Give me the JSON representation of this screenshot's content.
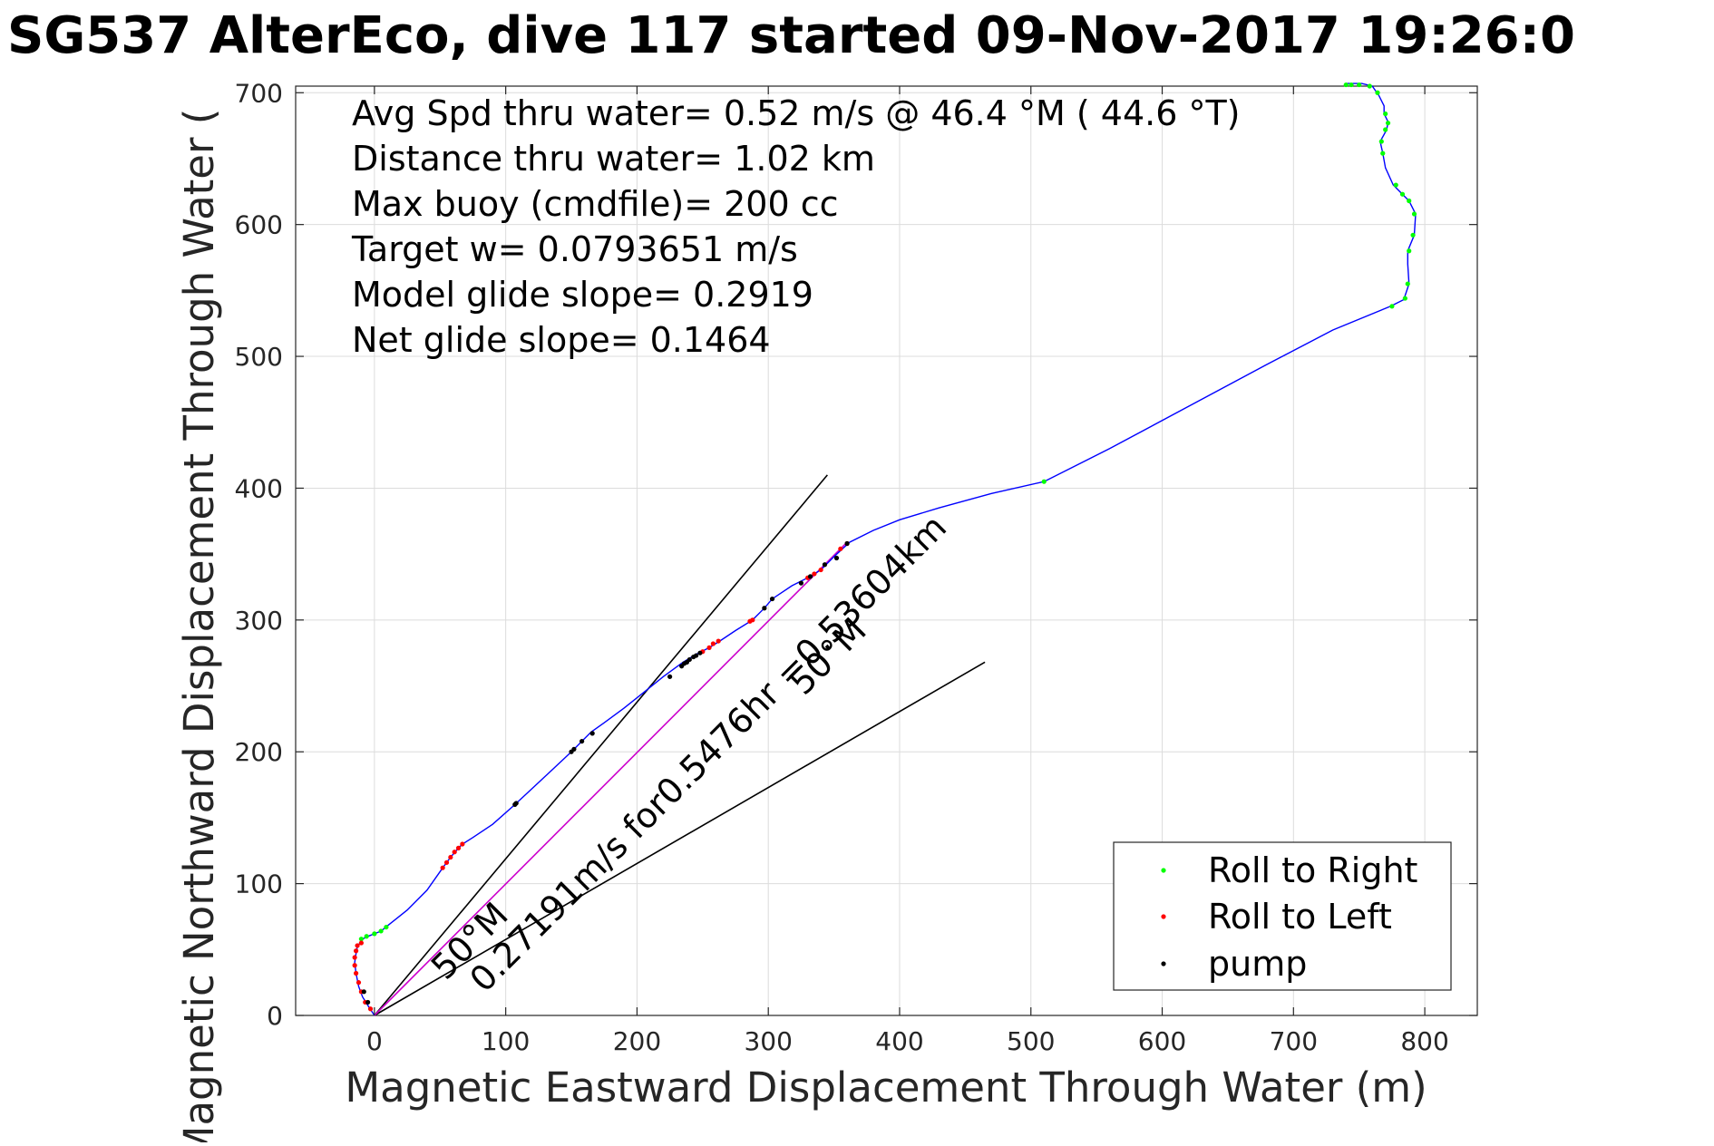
{
  "chart_data": {
    "type": "line",
    "title": "SG537 AlterEco, dive 117 started 09-Nov-2017 19:26:0",
    "xlabel": "Magnetic Eastward Displacement Through Water (m)",
    "ylabel": "Magnetic Northward Displacement Through Water (",
    "xlim": [
      -60,
      840
    ],
    "ylim": [
      0,
      705
    ],
    "grid": true,
    "x_ticks": [
      0,
      100,
      200,
      300,
      400,
      500,
      600,
      700,
      800
    ],
    "y_ticks": [
      0,
      100,
      200,
      300,
      400,
      500,
      600,
      700
    ],
    "x_tick_labels": [
      "0",
      "100",
      "200",
      "300",
      "400",
      "500",
      "600",
      "700",
      "800"
    ],
    "y_tick_labels": [
      "0",
      "100",
      "200",
      "300",
      "400",
      "500",
      "600",
      "700"
    ],
    "annotations": [
      "Avg Spd thru water=  0.52 m/s @  46.4 °M ( 44.6 °T)",
      "Distance thru water=  1.02 km",
      "Max buoy (cmdfile)= 200 cc",
      "Target w= 0.0793651 m/s",
      "Model glide slope= 0.2919",
      "Net glide slope= 0.1464"
    ],
    "vector_label": "0.27191m/s for0.5476hr =0.53604km",
    "heading_label_1": "50°M",
    "heading_label_2": "50°M",
    "colors": {
      "track": "#0000ff",
      "net_vector": "#cc00cc",
      "roll_right": "#00ff00",
      "roll_left": "#ff0000",
      "pump": "#000000",
      "heading_lines": "#000000"
    },
    "legend_position": "bottom-right",
    "legend": [
      {
        "name": "Roll to Right",
        "marker_color": "#00ff00"
      },
      {
        "name": "Roll to Left",
        "marker_color": "#ff0000"
      },
      {
        "name": "pump",
        "marker_color": "#000000"
      }
    ],
    "track": [
      [
        0,
        0
      ],
      [
        -4,
        6
      ],
      [
        -9,
        14
      ],
      [
        -12,
        22
      ],
      [
        -14,
        32
      ],
      [
        -15,
        40
      ],
      [
        -14,
        47
      ],
      [
        -13,
        52
      ],
      [
        -11,
        55
      ],
      [
        -9,
        58
      ],
      [
        -5,
        60
      ],
      [
        0,
        62
      ],
      [
        5,
        64
      ],
      [
        10,
        68
      ],
      [
        25,
        80
      ],
      [
        40,
        95
      ],
      [
        52,
        112
      ],
      [
        58,
        120
      ],
      [
        64,
        127
      ],
      [
        67,
        130
      ],
      [
        75,
        135
      ],
      [
        90,
        145
      ],
      [
        107,
        160
      ],
      [
        120,
        172
      ],
      [
        135,
        186
      ],
      [
        150,
        200
      ],
      [
        158,
        208
      ],
      [
        165,
        215
      ],
      [
        175,
        222
      ],
      [
        190,
        233
      ],
      [
        205,
        245
      ],
      [
        220,
        257
      ],
      [
        235,
        268
      ],
      [
        245,
        274
      ],
      [
        255,
        279
      ],
      [
        263,
        284
      ],
      [
        275,
        292
      ],
      [
        288,
        300
      ],
      [
        297,
        309
      ],
      [
        303,
        316
      ],
      [
        318,
        326
      ],
      [
        330,
        332
      ],
      [
        340,
        338
      ],
      [
        350,
        348
      ],
      [
        362,
        359
      ],
      [
        380,
        368
      ],
      [
        400,
        376
      ],
      [
        430,
        385
      ],
      [
        470,
        396
      ],
      [
        510,
        405
      ],
      [
        560,
        430
      ],
      [
        620,
        462
      ],
      [
        680,
        494
      ],
      [
        730,
        520
      ],
      [
        774,
        538
      ],
      [
        784,
        543
      ],
      [
        788,
        555
      ],
      [
        787,
        570
      ],
      [
        787,
        580
      ],
      [
        792,
        592
      ],
      [
        793,
        608
      ],
      [
        788,
        618
      ],
      [
        784,
        622
      ],
      [
        776,
        630
      ],
      [
        770,
        643
      ],
      [
        768,
        654
      ],
      [
        766,
        663
      ],
      [
        771,
        672
      ],
      [
        772,
        678
      ],
      [
        769,
        684
      ],
      [
        769,
        690
      ],
      [
        765,
        698
      ],
      [
        760,
        705
      ],
      [
        752,
        707
      ],
      [
        745,
        707
      ],
      [
        740,
        707
      ]
    ],
    "net_vector_end": [
      360,
      359
    ],
    "heading_lines": [
      [
        [
          0,
          0
        ],
        [
          345,
          410
        ]
      ],
      [
        [
          0,
          0
        ],
        [
          465,
          268
        ]
      ]
    ],
    "roll_right_points": [
      [
        -10,
        58
      ],
      [
        -6,
        60
      ],
      [
        0,
        62
      ],
      [
        5,
        64
      ],
      [
        9,
        67
      ],
      [
        510,
        405
      ],
      [
        775,
        538
      ],
      [
        785,
        544
      ],
      [
        787,
        555
      ],
      [
        788,
        580
      ],
      [
        791,
        592
      ],
      [
        792,
        608
      ],
      [
        788,
        618
      ],
      [
        783,
        623
      ],
      [
        778,
        630
      ],
      [
        768,
        654
      ],
      [
        767,
        663
      ],
      [
        770,
        672
      ],
      [
        772,
        677
      ],
      [
        770,
        684
      ],
      [
        764,
        700
      ],
      [
        758,
        705
      ],
      [
        750,
        706
      ],
      [
        744,
        706
      ],
      [
        740,
        706
      ]
    ],
    "roll_left_points": [
      [
        -3,
        5
      ],
      [
        -7,
        10
      ],
      [
        -10,
        18
      ],
      [
        -12,
        25
      ],
      [
        -14,
        32
      ],
      [
        -15,
        38
      ],
      [
        -15,
        44
      ],
      [
        -14,
        49
      ],
      [
        -13,
        53
      ],
      [
        -10,
        55
      ],
      [
        52,
        112
      ],
      [
        55,
        116
      ],
      [
        58,
        120
      ],
      [
        61,
        124
      ],
      [
        64,
        127
      ],
      [
        67,
        130
      ],
      [
        250,
        276
      ],
      [
        255,
        279
      ],
      [
        258,
        282
      ],
      [
        262,
        284
      ],
      [
        286,
        299
      ],
      [
        288,
        300
      ],
      [
        330,
        332
      ],
      [
        335,
        335
      ],
      [
        340,
        338
      ],
      [
        355,
        354
      ],
      [
        360,
        358
      ]
    ],
    "pump_points": [
      [
        -5,
        10
      ],
      [
        -8,
        18
      ],
      [
        107,
        160
      ],
      [
        108,
        161
      ],
      [
        150,
        200
      ],
      [
        152,
        202
      ],
      [
        158,
        208
      ],
      [
        166,
        214
      ],
      [
        225,
        257
      ],
      [
        234,
        265
      ],
      [
        236,
        267
      ],
      [
        238,
        268
      ],
      [
        240,
        270
      ],
      [
        243,
        272
      ],
      [
        245,
        273
      ],
      [
        248,
        275
      ],
      [
        297,
        309
      ],
      [
        303,
        316
      ],
      [
        325,
        328
      ],
      [
        332,
        333
      ],
      [
        343,
        342
      ],
      [
        352,
        347
      ],
      [
        360,
        358
      ]
    ]
  }
}
